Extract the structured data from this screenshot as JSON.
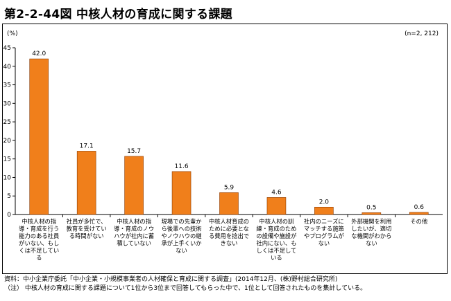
{
  "title": "第2-2-44図 中核人材の育成に関する課題",
  "unit_label": "(%)",
  "sample_note": "(n=2, 212)",
  "chart_data": {
    "type": "bar",
    "ylim": [
      0,
      45
    ],
    "yticks": [
      0,
      5,
      10,
      15,
      20,
      25,
      30,
      35,
      40,
      45
    ],
    "grid": false,
    "bar_color": "#f07f1b",
    "bar_edge": "#8a3a00",
    "categories": [
      "中核人材の指導・育成を行う能力のある社員がいない、もしくは不足している",
      "社員が多忙で、教育を受けている時間がない",
      "中核人材の指導・育成のノウハウが社内に蓄積していない",
      "現場での先輩から後輩への技術やノウハウの継承が上手くいかない",
      "中核人材育成のために必要となる費用を捻出できない",
      "中核人材の訓練・育成のための設備や施設が社内にない、もしくは不足している",
      "社内のニーズにマッチする施策やプログラムがない",
      "外部機関を利用したいが、適切な機関がわからない",
      "その他"
    ],
    "category_lines": [
      [
        "中核人材の指",
        "導・育成を行う",
        "能力のある社員",
        "がいない、もし",
        "くは不足してい",
        "る"
      ],
      [
        "社員が多忙で、",
        "教育を受けてい",
        "る時間がない"
      ],
      [
        "中核人材の指",
        "導・育成のノウ",
        "ハウが社内に蓄",
        "積していない"
      ],
      [
        "現場での先輩か",
        "ら後輩への技術",
        "やノウハウの継",
        "承が上手くいか",
        "ない"
      ],
      [
        "中核人材育成の",
        "ために必要とな",
        "る費用を捻出で",
        "きない"
      ],
      [
        "中核人材の訓",
        "練・育成のため",
        "の設備や施設が",
        "社内にない、も",
        "しくは不足して",
        "いる"
      ],
      [
        "社内のニーズに",
        "マッチする施策",
        "やプログラムが",
        "ない"
      ],
      [
        "外部機関を利用",
        "したいが、適切",
        "な機関がわから",
        "ない"
      ],
      [
        "その他"
      ]
    ],
    "values": [
      42.0,
      17.1,
      15.7,
      11.6,
      5.9,
      4.6,
      2.0,
      0.5,
      0.6
    ],
    "value_labels": [
      "42.0",
      "17.1",
      "15.7",
      "11.6",
      "5.9",
      "4.6",
      "2.0",
      "0.5",
      "0.6"
    ]
  },
  "footer": {
    "source": "資料：中小企業庁委託「中小企業・小規模事業者の人材確保と育成に関する調査」(2014年12月、(株)野村総合研究所)",
    "note": "（注） 中核人材の育成に関する課題について1位から3位まで回答してもらった中で、1位として回答されたものを集計している。"
  }
}
